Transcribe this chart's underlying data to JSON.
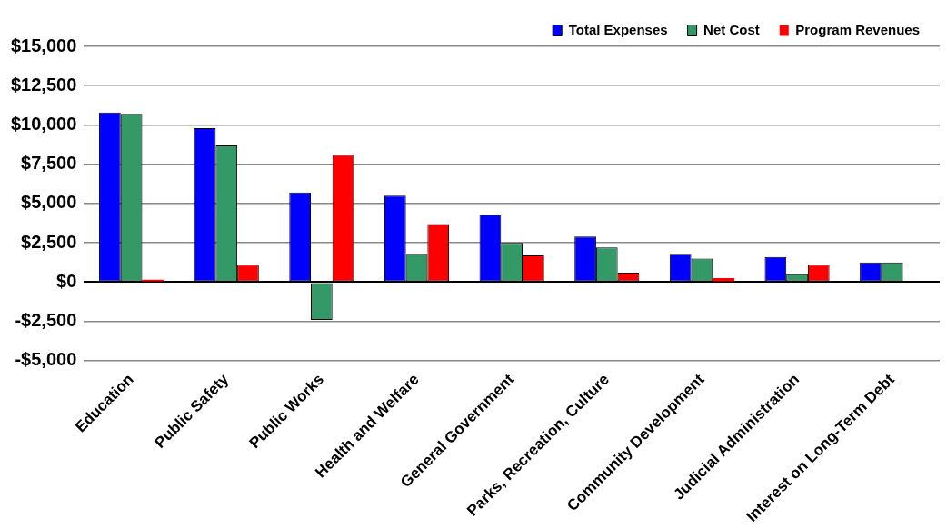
{
  "chart_data": {
    "type": "bar",
    "categories": [
      "Education",
      "Public Safety",
      "Public Works",
      "Health and Welfare",
      "General Government",
      "Parks, Recreation, Culture",
      "Community Development",
      "Judicial Administration",
      "Interest on Long-Term Debt"
    ],
    "series": [
      {
        "name": "Total Expenses",
        "color": "#0000ff",
        "values": [
          10800,
          9800,
          5700,
          5500,
          4300,
          2900,
          1800,
          1600,
          1250
        ]
      },
      {
        "name": "Net Cost",
        "color": "#339966",
        "values": [
          10700,
          8700,
          -2400,
          1800,
          2500,
          2200,
          1500,
          500,
          1250
        ]
      },
      {
        "name": "Program Revenues",
        "color": "#ff0000",
        "values": [
          150,
          1100,
          8100,
          3700,
          1700,
          600,
          250,
          1100,
          null
        ]
      }
    ],
    "ylim": [
      -5000,
      15000
    ],
    "yticks": [
      {
        "value": -5000,
        "label": "-$5,000"
      },
      {
        "value": -2500,
        "label": "-$2,500"
      },
      {
        "value": 0,
        "label": "$0"
      },
      {
        "value": 2500,
        "label": "$2,500"
      },
      {
        "value": 5000,
        "label": "$5,000"
      },
      {
        "value": 7500,
        "label": "$7,500"
      },
      {
        "value": 10000,
        "label": "$10,000"
      },
      {
        "value": 12500,
        "label": "$12,500"
      },
      {
        "value": 15000,
        "label": "$15,000"
      }
    ],
    "grid": "y",
    "legend": "top right"
  }
}
